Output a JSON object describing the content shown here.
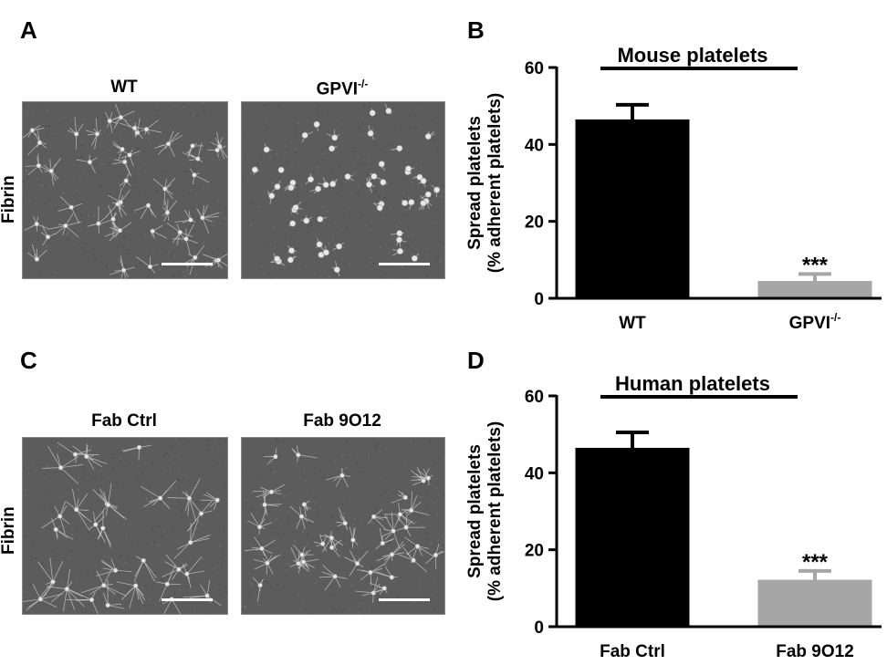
{
  "panels": {
    "a": {
      "letter": "A",
      "row_label": "Fibrin",
      "left_label": "WT",
      "right_label_main": "GPVI",
      "right_label_sup": "-/-"
    },
    "c": {
      "letter": "C",
      "row_label": "Fibrin",
      "left_label": "Fab Ctrl",
      "right_label": "Fab 9O12"
    },
    "b": {
      "letter": "B"
    },
    "d": {
      "letter": "D"
    }
  },
  "colors": {
    "bar_control": "#000000",
    "bar_treated": "#a6a6a6",
    "micrograph_bg": "#5c5c5c",
    "scale_bar": "#ffffff"
  },
  "chart_data": [
    {
      "type": "bar",
      "title": "Mouse platelets",
      "ylabel_line1": "Spread platelets",
      "ylabel_line2": "(% adherent platelets)",
      "ylim": [
        0,
        60
      ],
      "yticks": [
        0,
        20,
        40,
        60
      ],
      "categories": [
        "WT",
        "GPVI"
      ],
      "category_superscripts": [
        "",
        "-/-"
      ],
      "values": [
        46.5,
        4.5
      ],
      "errors": [
        3.8,
        1.8
      ],
      "significance": [
        "",
        "***"
      ]
    },
    {
      "type": "bar",
      "title": "Human platelets",
      "ylabel_line1": "Spread platelets",
      "ylabel_line2": "(% adherent platelets)",
      "ylim": [
        0,
        60
      ],
      "yticks": [
        0,
        20,
        40,
        60
      ],
      "categories": [
        "Fab Ctrl",
        "Fab 9O12"
      ],
      "category_superscripts": [
        "",
        ""
      ],
      "values": [
        46.5,
        12.2
      ],
      "errors": [
        4.0,
        2.3
      ],
      "significance": [
        "",
        "***"
      ]
    }
  ]
}
